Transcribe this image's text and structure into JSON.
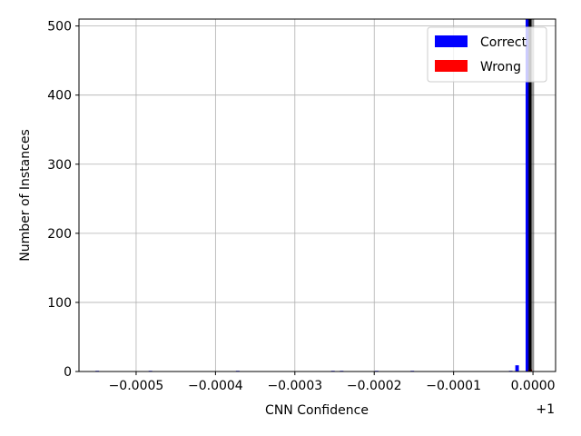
{
  "chart_data": {
    "type": "bar",
    "title": "",
    "xlabel": "CNN Confidence",
    "ylabel": "Number of Instances",
    "x_offset_label": "+1",
    "xlim": [
      -0.000572,
      2.85e-05
    ],
    "ylim": [
      0,
      510
    ],
    "x_ticks": [
      {
        "value": -0.0005,
        "label": "−0.0005"
      },
      {
        "value": -0.0004,
        "label": "−0.0004"
      },
      {
        "value": -0.0003,
        "label": "−0.0003"
      },
      {
        "value": -0.0002,
        "label": "−0.0002"
      },
      {
        "value": -0.0001,
        "label": "−0.0001"
      },
      {
        "value": 0.0,
        "label": "0.0000"
      }
    ],
    "y_ticks": [
      {
        "value": 0,
        "label": "0"
      },
      {
        "value": 100,
        "label": "100"
      },
      {
        "value": 200,
        "label": "200"
      },
      {
        "value": 300,
        "label": "300"
      },
      {
        "value": 400,
        "label": "400"
      },
      {
        "value": 500,
        "label": "500"
      }
    ],
    "bin_width": 4.5e-06,
    "grid": true,
    "legend_position": "top-right",
    "series": [
      {
        "name": "Correct",
        "color": "#0000ff",
        "points": [
          {
            "x": -0.000549,
            "y": 1
          },
          {
            "x": -0.000482,
            "y": 1
          },
          {
            "x": -0.000372,
            "y": 1
          },
          {
            "x": -0.000252,
            "y": 1
          },
          {
            "x": -0.000241,
            "y": 1
          },
          {
            "x": -0.000197,
            "y": 1
          },
          {
            "x": -0.000152,
            "y": 1
          },
          {
            "x": -2.8e-05,
            "y": 1
          },
          {
            "x": -2e-05,
            "y": 9
          },
          {
            "x": -7e-06,
            "y": 510
          }
        ]
      },
      {
        "name": "Wrong",
        "color": "#ff0000",
        "points": [
          {
            "x": -3.5e-06,
            "y": 3
          }
        ]
      }
    ],
    "marker_line": {
      "x": -3.5e-06,
      "color": "#000000"
    },
    "shaded_region": {
      "x_start": -6.5e-06,
      "x_end": 1.5e-06,
      "color": "#000000"
    }
  }
}
